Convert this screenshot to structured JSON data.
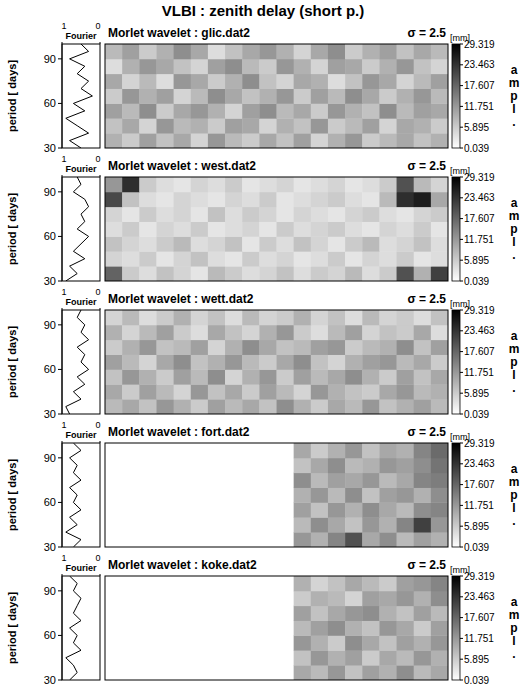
{
  "title": "VLBI : zenith delay (short p.)",
  "chart_data": [
    {
      "type": "heatmap",
      "title": "Morlet wavelet : glic.dat2",
      "subtitle": "σ = 2.5",
      "ylabel": "period [ days]",
      "ylim": [
        30,
        100
      ],
      "yticks": [
        30,
        60,
        90
      ],
      "tick_labels": "y",
      "y_edges": [
        30,
        40,
        50,
        60,
        70,
        80,
        90,
        100
      ],
      "cells": [
        [
          9,
          6,
          11,
          7,
          10,
          5,
          12,
          8,
          6,
          10,
          7,
          11,
          5,
          9,
          12,
          6,
          8,
          10,
          7,
          9
        ],
        [
          7,
          10,
          5,
          12,
          8,
          9,
          6,
          11,
          10,
          5,
          9,
          7,
          12,
          6,
          8,
          11,
          5,
          10,
          9,
          6
        ],
        [
          11,
          8,
          13,
          6,
          10,
          12,
          9,
          5,
          11,
          13,
          8,
          10,
          6,
          12,
          9,
          7,
          13,
          8,
          11,
          10
        ],
        [
          6,
          12,
          9,
          11,
          5,
          8,
          13,
          10,
          7,
          9,
          12,
          6,
          11,
          8,
          13,
          10,
          6,
          9,
          12,
          8
        ],
        [
          10,
          5,
          8,
          4,
          12,
          10,
          6,
          9,
          13,
          7,
          5,
          10,
          9,
          4,
          7,
          12,
          10,
          5,
          8,
          11
        ],
        [
          4,
          9,
          12,
          10,
          7,
          5,
          11,
          13,
          8,
          6,
          12,
          9,
          5,
          11,
          10,
          6,
          9,
          12,
          7,
          5
        ],
        [
          8,
          11,
          6,
          9,
          13,
          10,
          4,
          7,
          10,
          12,
          9,
          5,
          10,
          13,
          6,
          9,
          11,
          7,
          10,
          8
        ]
      ],
      "colorbar": {
        "unit": "[mm]",
        "label": "ampl.",
        "range": [
          0.039,
          29.319
        ],
        "ticks": [
          0.039,
          5.895,
          11.751,
          17.607,
          23.463,
          29.319
        ],
        "colors": [
          "#ffffff",
          "#000000"
        ]
      },
      "fourier": {
        "label": "Fourier",
        "xlim": [
          1,
          0
        ],
        "xticks": [
          1,
          0
        ],
        "periods": [
          30,
          35,
          40,
          45,
          50,
          55,
          60,
          65,
          70,
          75,
          80,
          85,
          90,
          95,
          100
        ],
        "values": [
          0.5,
          0.8,
          0.3,
          0.6,
          0.9,
          0.4,
          0.7,
          0.2,
          0.5,
          0.3,
          0.6,
          0.4,
          0.8,
          0.3,
          0.5
        ]
      }
    },
    {
      "type": "heatmap",
      "title": "Morlet wavelet : west.dat2",
      "subtitle": "σ = 2.5",
      "ylabel": "period [ days]",
      "ylim": [
        30,
        100
      ],
      "yticks": [
        30,
        60,
        90
      ],
      "tick_labels": "y",
      "y_edges": [
        30,
        40,
        50,
        60,
        70,
        80,
        90,
        100
      ],
      "cells": [
        [
          18,
          6,
          4,
          7,
          5,
          3,
          8,
          6,
          4,
          5,
          7,
          4,
          6,
          5,
          8,
          4,
          6,
          20,
          9,
          22
        ],
        [
          5,
          4,
          6,
          3,
          5,
          7,
          4,
          3,
          6,
          4,
          5,
          3,
          4,
          6,
          3,
          5,
          4,
          6,
          3,
          4
        ],
        [
          7,
          5,
          4,
          6,
          8,
          4,
          5,
          7,
          3,
          6,
          4,
          7,
          5,
          3,
          6,
          8,
          4,
          5,
          7,
          4
        ],
        [
          4,
          6,
          3,
          5,
          4,
          6,
          3,
          4,
          5,
          3,
          6,
          4,
          5,
          6,
          4,
          3,
          5,
          4,
          6,
          3
        ],
        [
          5,
          3,
          6,
          4,
          5,
          3,
          7,
          4,
          6,
          5,
          3,
          5,
          4,
          3,
          5,
          6,
          4,
          3,
          5,
          6
        ],
        [
          21,
          7,
          4,
          3,
          5,
          4,
          3,
          5,
          4,
          6,
          3,
          4,
          5,
          6,
          4,
          3,
          8,
          24,
          26,
          10
        ],
        [
          12,
          24,
          6,
          4,
          3,
          5,
          4,
          6,
          3,
          4,
          5,
          3,
          4,
          5,
          3,
          4,
          6,
          20,
          8,
          5
        ]
      ],
      "colorbar": {
        "unit": "[mm]",
        "label": "ampl.",
        "range": [
          0.039,
          29.319
        ],
        "ticks": [
          0.039,
          5.895,
          11.751,
          17.607,
          23.463,
          29.319
        ],
        "colors": [
          "#ffffff",
          "#000000"
        ]
      },
      "fourier": {
        "label": "Fourier",
        "xlim": [
          1,
          0
        ],
        "xticks": [
          1,
          0
        ],
        "periods": [
          30,
          35,
          40,
          45,
          50,
          55,
          60,
          65,
          70,
          75,
          80,
          85,
          90,
          95,
          100
        ],
        "values": [
          0.9,
          0.6,
          0.8,
          0.4,
          0.7,
          0.5,
          0.3,
          0.6,
          0.4,
          0.5,
          0.3,
          0.4,
          0.7,
          0.5,
          0.6
        ]
      }
    },
    {
      "type": "heatmap",
      "title": "Morlet wavelet : wett.dat2",
      "subtitle": "σ = 2.5",
      "ylabel": "period [ days]",
      "ylim": [
        30,
        100
      ],
      "yticks": [
        30,
        60,
        90
      ],
      "tick_labels": "y",
      "y_edges": [
        30,
        40,
        50,
        60,
        70,
        80,
        90,
        100
      ],
      "cells": [
        [
          8,
          10,
          7,
          12,
          9,
          6,
          11,
          8,
          10,
          7,
          13,
          9,
          6,
          10,
          8,
          12,
          7,
          9,
          11,
          8
        ],
        [
          10,
          6,
          11,
          8,
          5,
          12,
          7,
          10,
          6,
          11,
          8,
          5,
          12,
          9,
          7,
          6,
          10,
          12,
          8,
          9
        ],
        [
          7,
          12,
          9,
          6,
          11,
          8,
          13,
          5,
          9,
          12,
          6,
          11,
          8,
          10,
          13,
          9,
          6,
          11,
          7,
          10
        ],
        [
          11,
          8,
          5,
          10,
          13,
          7,
          9,
          12,
          8,
          6,
          10,
          13,
          7,
          5,
          9,
          11,
          12,
          8,
          10,
          6
        ],
        [
          6,
          9,
          12,
          7,
          8,
          11,
          5,
          9,
          13,
          10,
          7,
          8,
          11,
          12,
          6,
          8,
          9,
          13,
          7,
          11
        ],
        [
          9,
          5,
          8,
          11,
          6,
          4,
          10,
          7,
          5,
          9,
          12,
          6,
          4,
          8,
          11,
          5,
          7,
          6,
          10,
          4
        ],
        [
          5,
          8,
          4,
          6,
          9,
          5,
          7,
          4,
          8,
          5,
          6,
          9,
          5,
          7,
          4,
          8,
          5,
          6,
          4,
          7
        ]
      ],
      "colorbar": {
        "unit": "[mm]",
        "label": "ampl.",
        "range": [
          0.039,
          29.319
        ],
        "ticks": [
          0.039,
          5.895,
          11.751,
          17.607,
          23.463,
          29.319
        ],
        "colors": [
          "#ffffff",
          "#000000"
        ]
      },
      "fourier": {
        "label": "Fourier",
        "xlim": [
          1,
          0
        ],
        "xticks": [
          1,
          0
        ],
        "periods": [
          30,
          35,
          40,
          45,
          50,
          55,
          60,
          65,
          70,
          75,
          80,
          85,
          90,
          95,
          100
        ],
        "values": [
          0.8,
          0.9,
          0.5,
          0.7,
          0.4,
          0.6,
          0.3,
          0.5,
          0.4,
          0.6,
          0.3,
          0.5,
          0.4,
          0.6,
          0.5
        ]
      }
    },
    {
      "type": "heatmap",
      "title": "Morlet wavelet : fort.dat2",
      "subtitle": "σ = 2.5",
      "ylabel": "period [ days]",
      "ylim": [
        30,
        100
      ],
      "yticks": [
        30,
        60,
        90
      ],
      "tick_labels": "y",
      "y_edges": [
        30,
        40,
        50,
        60,
        70,
        80,
        90,
        100
      ],
      "cells": [
        [
          null,
          null,
          null,
          null,
          null,
          null,
          null,
          null,
          null,
          null,
          null,
          12,
          9,
          14,
          20,
          10,
          13,
          8,
          11,
          9
        ],
        [
          null,
          null,
          null,
          null,
          null,
          null,
          null,
          null,
          null,
          null,
          null,
          8,
          13,
          10,
          7,
          12,
          9,
          14,
          22,
          12
        ],
        [
          null,
          null,
          null,
          null,
          null,
          null,
          null,
          null,
          null,
          null,
          null,
          11,
          7,
          12,
          9,
          13,
          10,
          8,
          13,
          14
        ],
        [
          null,
          null,
          null,
          null,
          null,
          null,
          null,
          null,
          null,
          null,
          null,
          9,
          12,
          8,
          13,
          7,
          11,
          12,
          9,
          13
        ],
        [
          null,
          null,
          null,
          null,
          null,
          null,
          null,
          null,
          null,
          null,
          null,
          13,
          8,
          11,
          10,
          12,
          8,
          10,
          14,
          15
        ],
        [
          null,
          null,
          null,
          null,
          null,
          null,
          null,
          null,
          null,
          null,
          null,
          7,
          10,
          13,
          8,
          9,
          12,
          11,
          13,
          16
        ],
        [
          null,
          null,
          null,
          null,
          null,
          null,
          null,
          null,
          null,
          null,
          null,
          10,
          6,
          9,
          12,
          7,
          10,
          9,
          14,
          17
        ]
      ],
      "colorbar": {
        "unit": "[mm]",
        "label": "ampl.",
        "range": [
          0.039,
          29.319
        ],
        "ticks": [
          0.039,
          5.895,
          11.751,
          17.607,
          23.463,
          29.319
        ],
        "colors": [
          "#ffffff",
          "#000000"
        ]
      },
      "fourier": {
        "label": "Fourier",
        "xlim": [
          1,
          0
        ],
        "xticks": [
          1,
          0
        ],
        "periods": [
          30,
          35,
          40,
          45,
          50,
          55,
          60,
          65,
          70,
          75,
          80,
          85,
          90,
          95,
          100
        ],
        "values": [
          0.7,
          0.5,
          0.9,
          0.6,
          0.8,
          0.5,
          0.7,
          0.6,
          0.8,
          0.5,
          0.7,
          0.6,
          0.8,
          0.5,
          0.7
        ]
      }
    },
    {
      "type": "heatmap",
      "title": "Morlet wavelet : koke.dat2",
      "subtitle": "σ = 2.5",
      "ylabel": "period [ days]",
      "ylim": [
        30,
        100
      ],
      "yticks": [
        30,
        60,
        90
      ],
      "tick_labels": "y",
      "y_edges": [
        30,
        40,
        50,
        60,
        70,
        80,
        90,
        100
      ],
      "cells": [
        [
          null,
          null,
          null,
          null,
          null,
          null,
          null,
          null,
          null,
          null,
          null,
          10,
          8,
          12,
          7,
          11,
          9,
          13,
          8,
          10
        ],
        [
          null,
          null,
          null,
          null,
          null,
          null,
          null,
          null,
          null,
          null,
          null,
          7,
          12,
          9,
          11,
          6,
          10,
          8,
          12,
          9
        ],
        [
          null,
          null,
          null,
          null,
          null,
          null,
          null,
          null,
          null,
          null,
          null,
          12,
          9,
          6,
          13,
          10,
          7,
          11,
          9,
          12
        ],
        [
          null,
          null,
          null,
          null,
          null,
          null,
          null,
          null,
          null,
          null,
          null,
          8,
          11,
          13,
          9,
          7,
          12,
          10,
          6,
          11
        ],
        [
          null,
          null,
          null,
          null,
          null,
          null,
          null,
          null,
          null,
          null,
          null,
          11,
          7,
          10,
          12,
          13,
          9,
          7,
          11,
          8
        ],
        [
          null,
          null,
          null,
          null,
          null,
          null,
          null,
          null,
          null,
          null,
          null,
          6,
          9,
          8,
          5,
          11,
          10,
          12,
          9,
          13
        ],
        [
          null,
          null,
          null,
          null,
          null,
          null,
          null,
          null,
          null,
          null,
          null,
          9,
          5,
          7,
          10,
          8,
          6,
          11,
          12,
          14
        ]
      ],
      "colorbar": {
        "unit": "[mm]",
        "label": "ampl.",
        "range": [
          0.039,
          29.319
        ],
        "ticks": [
          0.039,
          5.895,
          11.751,
          17.607,
          23.463,
          29.319
        ],
        "colors": [
          "#ffffff",
          "#000000"
        ]
      },
      "fourier": {
        "label": "Fourier",
        "xlim": [
          1,
          0
        ],
        "xticks": [
          1,
          0
        ],
        "periods": [
          30,
          35,
          40,
          45,
          50,
          55,
          60,
          65,
          70,
          75,
          80,
          85,
          90,
          95,
          100
        ],
        "values": [
          0.8,
          0.6,
          0.7,
          0.9,
          0.5,
          0.7,
          0.6,
          0.8,
          0.5,
          0.7,
          0.6,
          0.5,
          0.7,
          0.6,
          0.8
        ]
      }
    }
  ]
}
